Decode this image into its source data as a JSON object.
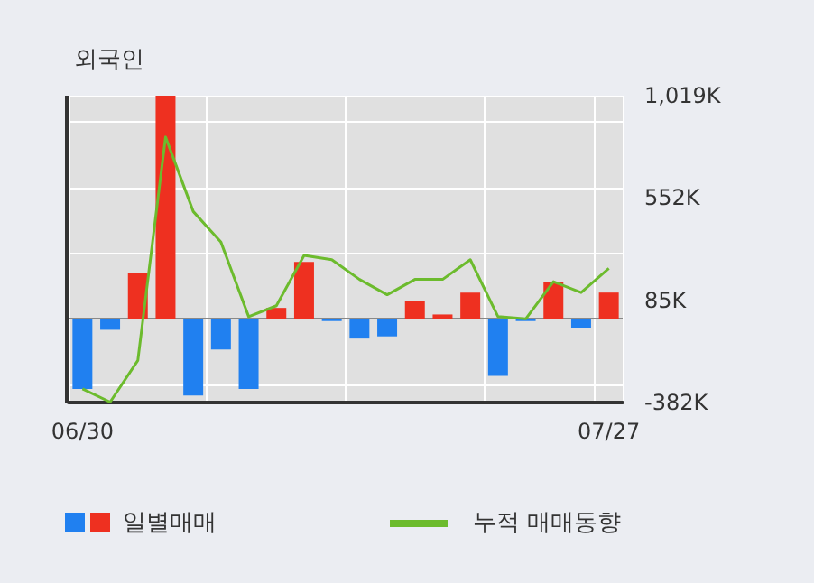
{
  "chart_data": {
    "type": "bar",
    "title": "외국인",
    "categories": [
      "06/30",
      null,
      null,
      null,
      null,
      null,
      null,
      null,
      null,
      null,
      null,
      null,
      null,
      null,
      null,
      null,
      null,
      null,
      null,
      "07/27"
    ],
    "series": [
      {
        "name": "일별매매",
        "values": [
          -320,
          -50,
          210,
          1019,
          -350,
          -140,
          -320,
          50,
          260,
          -10,
          -90,
          -80,
          80,
          20,
          120,
          -260,
          -10,
          170,
          -40,
          120
        ],
        "colors": [
          "#2080f0",
          "#2080f0",
          "#ee3020",
          "#ee3020",
          "#2080f0",
          "#2080f0",
          "#2080f0",
          "#ee3020",
          "#ee3020",
          "#2080f0",
          "#2080f0",
          "#2080f0",
          "#ee3020",
          "#ee3020",
          "#ee3020",
          "#2080f0",
          "#2080f0",
          "#ee3020",
          "#2080f0",
          "#ee3020"
        ]
      },
      {
        "name": "누적 매매동향",
        "type": "line",
        "color": "#6cbb2d",
        "values": [
          -320,
          -380,
          -190,
          830,
          490,
          350,
          10,
          60,
          290,
          270,
          180,
          110,
          180,
          180,
          270,
          10,
          0,
          170,
          120,
          230
        ]
      }
    ],
    "ylim": [
      -382,
      1019
    ],
    "yticks": [
      {
        "value": -382,
        "label": "-382K"
      },
      {
        "value": 85,
        "label": "85K"
      },
      {
        "value": 552,
        "label": "552K"
      },
      {
        "value": 1019,
        "label": "1,019K"
      }
    ],
    "grid": true,
    "legend": "bottom",
    "marker": "none"
  }
}
